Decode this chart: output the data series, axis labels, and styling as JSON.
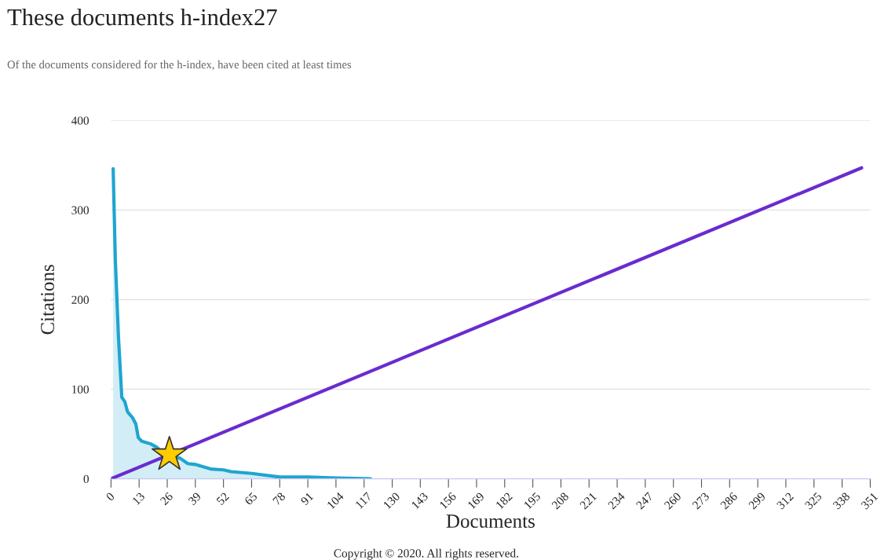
{
  "chart_data": {
    "type": "line",
    "title": "These documents h-index27",
    "subtitle": "Of the documents considered for the h-index, have been cited at least times",
    "xlabel": "Documents",
    "ylabel": "Citations",
    "xlim": [
      0,
      351
    ],
    "xticks": [
      0,
      13,
      26,
      39,
      52,
      65,
      78,
      91,
      104,
      117,
      130,
      143,
      156,
      169,
      182,
      195,
      208,
      221,
      234,
      247,
      260,
      273,
      286,
      299,
      312,
      325,
      338,
      351
    ],
    "ylim": [
      0,
      400
    ],
    "yticks": [
      0,
      100,
      200,
      300,
      400
    ],
    "grid": "y",
    "legend": false,
    "series": [
      {
        "type": "area",
        "color": "#1fa5d0",
        "x": [
          1,
          2,
          3.5,
          5,
          6.4,
          7.6,
          10,
          11.5,
          12.6,
          14.2,
          18.3,
          21.3,
          24.8,
          31.9,
          35.5,
          39,
          46,
          52,
          55.5,
          65,
          78,
          91,
          104,
          120
        ],
        "values": [
          346,
          244,
          156,
          91,
          86,
          75,
          68,
          61,
          46,
          42,
          39,
          35,
          27,
          23,
          17,
          16,
          11,
          10,
          8,
          6,
          2,
          2,
          1,
          0
        ]
      },
      {
        "color": "#6a2bd0",
        "x": [
          0,
          347
        ],
        "values": [
          0,
          347
        ]
      },
      {
        "type": "scatter",
        "color": "#ffcc00",
        "marker": "star",
        "x": [
          27
        ],
        "values": [
          27
        ]
      }
    ],
    "annotations": [
      "Copyright © 2020. All rights reserved."
    ]
  }
}
